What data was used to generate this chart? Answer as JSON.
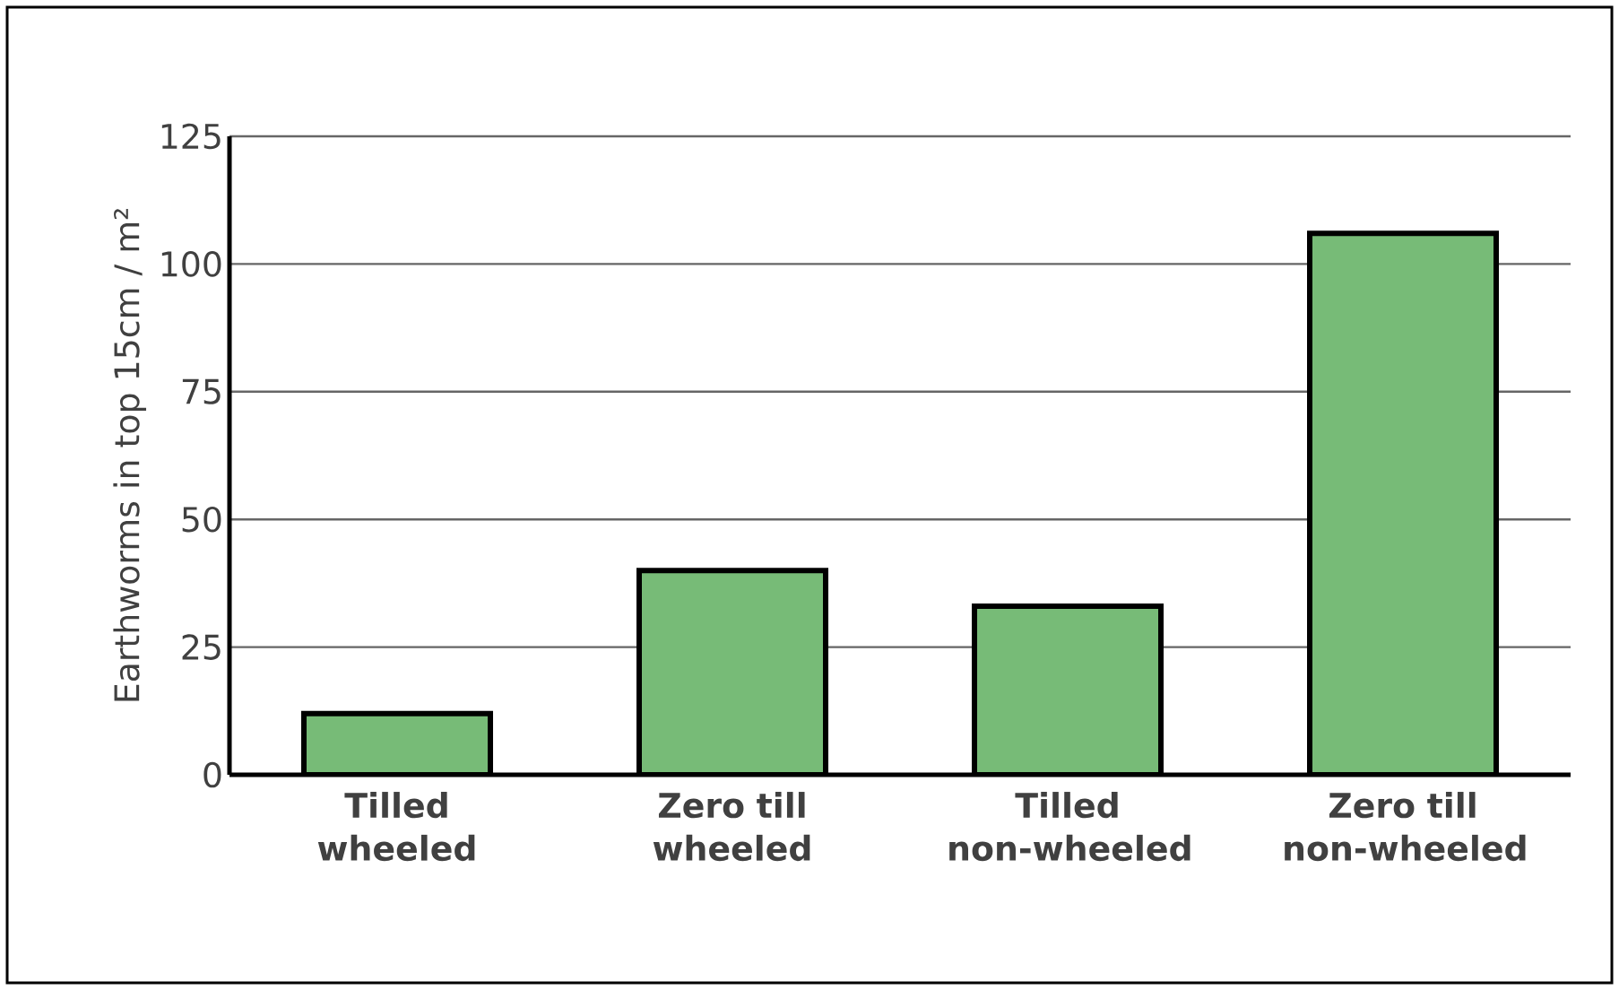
{
  "chart_data": {
    "type": "bar",
    "ylabel": "Earthworms in top 15cm / m²",
    "categories": [
      "Tilled wheeled",
      "Zero till wheeled",
      "Tilled non-wheeled",
      "Zero till non-wheeled"
    ],
    "values": [
      12,
      40,
      33,
      106
    ],
    "color": "#77bb77",
    "ylim": [
      0,
      125
    ],
    "yticks": [
      0,
      25,
      50,
      75,
      100,
      125
    ],
    "grid": "y"
  }
}
